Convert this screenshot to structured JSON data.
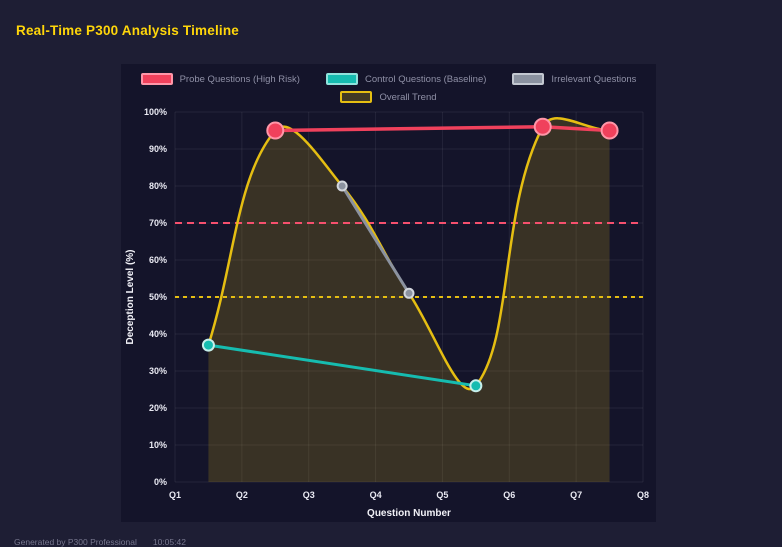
{
  "page": {
    "title": "Real-Time P300 Analysis Timeline",
    "footer": {
      "generator": "Generated by P300 Professional",
      "time": "10:05:42"
    }
  },
  "theme": {
    "page_bg": "#1e1e34",
    "panel_bg": "#14142a",
    "title_color": "#ffd60a",
    "grid_color": "rgba(255,255,255,0.07)",
    "axis_text_color": "#e9e9f2",
    "legend_text_color": "#8f90a6",
    "footer_color": "#77778e"
  },
  "chart_data": {
    "type": "line",
    "title": "Real-Time P300 Analysis Timeline",
    "xlabel": "Question Number",
    "ylabel": "Deception Level (%)",
    "x_tick_labels": [
      "Q1",
      "Q2",
      "Q3",
      "Q4",
      "Q5",
      "Q6",
      "Q7",
      "Q8"
    ],
    "x_tick_values": [
      1,
      2,
      3,
      4,
      5,
      6,
      7,
      8
    ],
    "xlim": [
      1,
      8
    ],
    "ylim": [
      0,
      100
    ],
    "y_tick_labels": [
      "0%",
      "10%",
      "20%",
      "30%",
      "40%",
      "50%",
      "60%",
      "70%",
      "80%",
      "90%",
      "100%"
    ],
    "y_tick_step": 10,
    "grid": true,
    "legend_position": "top",
    "thresholds": [
      {
        "y": 70,
        "color": "#f6506e",
        "dash": "7 5",
        "width": 2
      },
      {
        "y": 50,
        "color": "#e5be12",
        "dash": "4 4",
        "width": 2
      }
    ],
    "series": [
      {
        "name": "Probe Questions (High Risk)",
        "color": "#f0415c",
        "point_stroke": "#ff96a8",
        "point_radius": 8,
        "line_width": 3.5,
        "swatch_fill": "#f0415c",
        "swatch_border": "#ff96a8",
        "smooth": false,
        "points": [
          [
            2.5,
            95
          ],
          [
            6.5,
            96
          ],
          [
            7.5,
            95
          ]
        ]
      },
      {
        "name": "Control Questions (Baseline)",
        "color": "#16bcb0",
        "point_stroke": "#c6efeb",
        "point_radius": 5.5,
        "line_width": 3,
        "swatch_fill": "#16bcb0",
        "swatch_border": "#8fe3dc",
        "smooth": false,
        "points": [
          [
            1.5,
            37
          ],
          [
            5.5,
            26
          ]
        ]
      },
      {
        "name": "Irrelevant Questions",
        "color": "#8b92a0",
        "point_stroke": "#d2d6dd",
        "point_radius": 4.5,
        "line_width": 3,
        "swatch_fill": "#8b92a0",
        "swatch_border": "#c3c8d1",
        "smooth": false,
        "points": [
          [
            3.5,
            80
          ],
          [
            4.5,
            51
          ]
        ]
      },
      {
        "name": "Overall Trend",
        "color": "#e5be12",
        "point_stroke": "none",
        "point_radius": 0,
        "line_width": 2.5,
        "swatch_fill": "rgba(229,190,18,0.22)",
        "swatch_border": "#e5be12",
        "smooth": true,
        "area_fill": "rgba(229,190,18,0.18)",
        "points": [
          [
            1.5,
            37
          ],
          [
            2.5,
            95
          ],
          [
            3.5,
            80
          ],
          [
            4.5,
            51
          ],
          [
            5.5,
            26
          ],
          [
            6.5,
            96
          ],
          [
            7.5,
            95
          ]
        ]
      }
    ]
  }
}
